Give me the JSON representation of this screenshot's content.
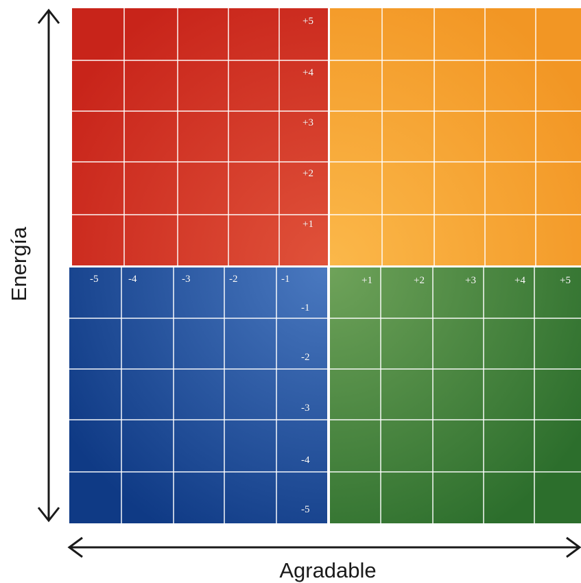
{
  "axes": {
    "y_label": "Energía",
    "x_label": "Agradable"
  },
  "quadrants": [
    {
      "id": "top-left",
      "color_light": "#e0523a",
      "color_dark": "#c8241a"
    },
    {
      "id": "top-right",
      "color_light": "#fbb84a",
      "color_dark": "#f29624"
    },
    {
      "id": "bottom-left",
      "color_light": "#4a79c0",
      "color_dark": "#0f3a85"
    },
    {
      "id": "bottom-right",
      "color_light": "#6fa35a",
      "color_dark": "#2c6e2c"
    }
  ],
  "ticks": {
    "top_vertical": [
      "+5",
      "+4",
      "+3",
      "+2",
      "+1"
    ],
    "bottom_vertical": [
      "-1",
      "-2",
      "-3",
      "-4",
      "-5"
    ],
    "left_horizontal": [
      "-5",
      "-4",
      "-3",
      "-2",
      "-1"
    ],
    "right_horizontal": [
      "+1",
      "+2",
      "+3",
      "+4",
      "+5"
    ]
  }
}
